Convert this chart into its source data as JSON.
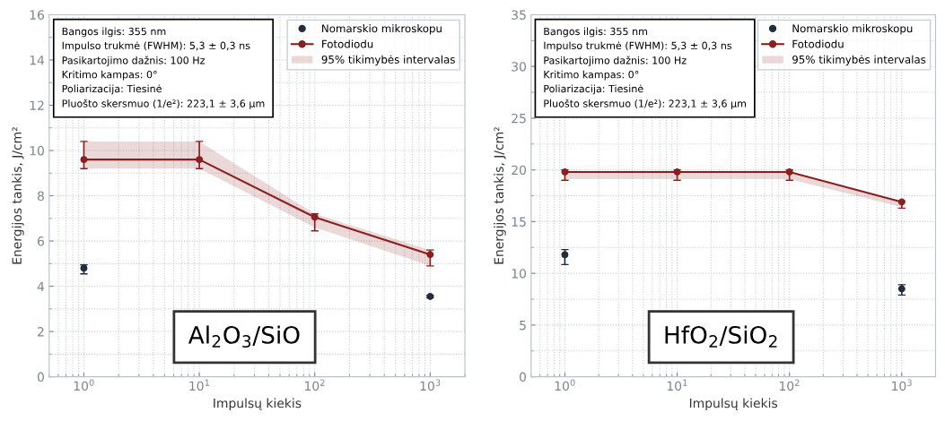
{
  "chart_data": [
    {
      "type": "scatter",
      "xlabel": "Impulsų kiekis",
      "ylabel": "Energijos tankis, J/cm²",
      "log": "x",
      "grid": true,
      "legend": "top right",
      "marker": "circle",
      "x": [
        1,
        10,
        100,
        1000
      ],
      "xlim": [
        0.5,
        2000
      ],
      "xticks": [
        {
          "value": 1,
          "label": "10$^{0}$"
        },
        {
          "value": 10,
          "label": "10$^{1}$"
        },
        {
          "value": 100,
          "label": "10$^{2}$"
        },
        {
          "value": 1000,
          "label": "10$^{3}$"
        }
      ],
      "ylim": [
        0,
        16
      ],
      "yticks": [
        0,
        2,
        4,
        6,
        8,
        10,
        12,
        14,
        16
      ],
      "series": [
        {
          "name": "Nomarskio mikroskopu",
          "color": "#1f2d3d",
          "values": [
            4.8,
            null,
            null,
            3.55
          ],
          "errors": [
            [
              4.55,
              4.95
            ],
            null,
            null,
            [
              3.5,
              3.6
            ]
          ]
        },
        {
          "name": "Fotodiodu",
          "type": "line",
          "color": "#8b1e1e",
          "values": [
            9.6,
            9.6,
            7.05,
            5.4
          ],
          "errors": [
            [
              9.2,
              10.4
            ],
            [
              9.2,
              10.4
            ],
            [
              6.45,
              7.2
            ],
            [
              4.9,
              5.6
            ]
          ],
          "lower": [
            9.2,
            9.2,
            6.6,
            4.9
          ],
          "upper": [
            10.4,
            10.4,
            7.2,
            5.6
          ]
        }
      ],
      "annotations": [
        "Bangos ilgis: 355 nm",
        "Impulso trukmė (FWHM): 5,3 ± 0,3 ns",
        "Pasikartojimo dažnis: 100 Hz",
        "Kritimo kampas: 0°",
        "Poliarizacija: Tiesinė",
        "Pluošto skersmuo (1/e²): 223,1 ± 3,6 µm",
        "Al$_{2}$O$_{3}$/SiO",
        "95% tikimybės intervalas"
      ]
    },
    {
      "type": "scatter",
      "xlabel": "Impulsų kiekis",
      "ylabel": "Energijos tankis, J/cm²",
      "log": "x",
      "grid": true,
      "legend": "top right",
      "marker": "circle",
      "x": [
        1,
        10,
        100,
        1000
      ],
      "xlim": [
        0.5,
        2000
      ],
      "xticks": [
        {
          "value": 1,
          "label": "10$^{0}$"
        },
        {
          "value": 10,
          "label": "10$^{1}$"
        },
        {
          "value": 100,
          "label": "10$^{2}$"
        },
        {
          "value": 1000,
          "label": "10$^{3}$"
        }
      ],
      "ylim": [
        0,
        35
      ],
      "yticks": [
        0,
        5,
        10,
        15,
        20,
        25,
        30,
        35
      ],
      "series": [
        {
          "name": "Nomarskio mikroskopu",
          "color": "#1f2d3d",
          "values": [
            11.8,
            null,
            null,
            8.5
          ],
          "errors": [
            [
              10.85,
              12.3
            ],
            null,
            null,
            [
              7.9,
              8.9
            ]
          ]
        },
        {
          "name": "Fotodiodu",
          "type": "line",
          "color": "#8b1e1e",
          "values": [
            19.8,
            19.8,
            19.8,
            16.9
          ],
          "errors": [
            [
              19.0,
              20.0
            ],
            [
              19.0,
              20.0
            ],
            [
              19.0,
              20.0
            ],
            [
              16.3,
              17.0
            ]
          ],
          "lower": [
            19.1,
            19.1,
            19.1,
            16.4
          ],
          "upper": [
            19.8,
            19.8,
            19.8,
            16.9
          ]
        }
      ],
      "annotations": [
        "Bangos ilgis: 355 nm",
        "Impulso trukmė (FWHM): 5,3 ± 0,3 ns",
        "Pasikartojimo dažnis: 100 Hz",
        "Kritimo kampas: 0°",
        "Poliarizacija: Tiesinė",
        "Pluošto skersmuo (1/e²): 223,1 ± 3,6 µm",
        "HfO$_{2}$/SiO$_{2}$",
        "95% tikimybės intervalas"
      ]
    }
  ]
}
